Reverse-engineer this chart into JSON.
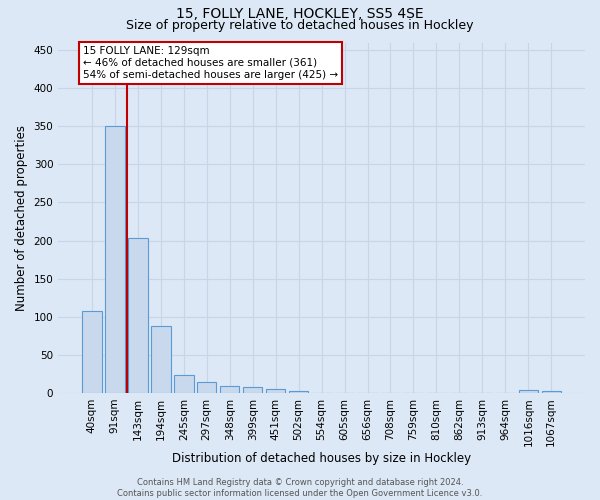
{
  "title1": "15, FOLLY LANE, HOCKLEY, SS5 4SE",
  "title2": "Size of property relative to detached houses in Hockley",
  "xlabel": "Distribution of detached houses by size in Hockley",
  "ylabel": "Number of detached properties",
  "categories": [
    "40sqm",
    "91sqm",
    "143sqm",
    "194sqm",
    "245sqm",
    "297sqm",
    "348sqm",
    "399sqm",
    "451sqm",
    "502sqm",
    "554sqm",
    "605sqm",
    "656sqm",
    "708sqm",
    "759sqm",
    "810sqm",
    "862sqm",
    "913sqm",
    "964sqm",
    "1016sqm",
    "1067sqm"
  ],
  "values": [
    108,
    350,
    203,
    88,
    24,
    15,
    9,
    8,
    5,
    3,
    0,
    0,
    0,
    0,
    0,
    0,
    0,
    0,
    0,
    4,
    2
  ],
  "bar_color": "#c9d9ed",
  "bar_edge_color": "#5b9bd5",
  "vline_color": "#c00000",
  "annotation_text": "15 FOLLY LANE: 129sqm\n← 46% of detached houses are smaller (361)\n54% of semi-detached houses are larger (425) →",
  "annotation_box_color": "white",
  "annotation_box_edge_color": "#c00000",
  "annotation_fontsize": 7.5,
  "grid_color": "#c8d4e8",
  "background_color": "#dce8f5",
  "footer_text": "Contains HM Land Registry data © Crown copyright and database right 2024.\nContains public sector information licensed under the Open Government Licence v3.0.",
  "ylim": [
    0,
    460
  ],
  "title1_fontsize": 10,
  "title2_fontsize": 9,
  "ylabel_fontsize": 8.5,
  "xlabel_fontsize": 8.5,
  "tick_fontsize": 7.5,
  "footer_fontsize": 6.0
}
